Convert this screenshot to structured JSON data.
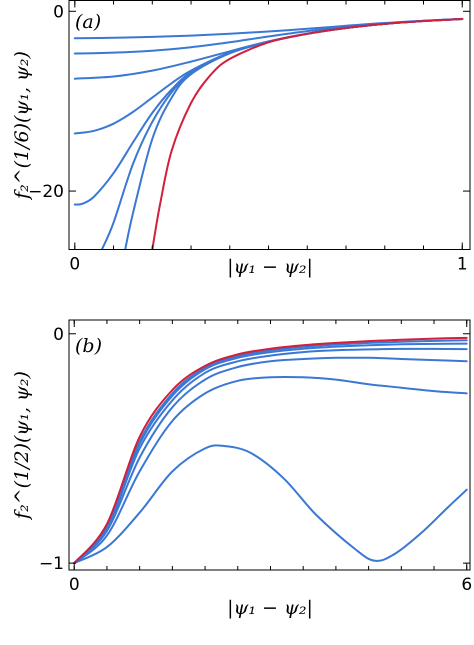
{
  "chart_data": [
    {
      "type": "line",
      "panel_label": "(a)",
      "xlabel": "|ψ₁ − ψ₂|",
      "ylabel": "f₂^(1/6)(ψ₁, ψ₂)",
      "xlim": [
        -0.015,
        1.02
      ],
      "ylim": [
        -26.5,
        1.2
      ],
      "xticks": [
        {
          "v": 0,
          "label": "0"
        },
        {
          "v": 1,
          "label": "1"
        }
      ],
      "yticks": [
        {
          "v": 0,
          "label": "0"
        },
        {
          "v": -20,
          "label": "−20"
        }
      ],
      "grid": false,
      "series": [
        {
          "color": "#3a78d4",
          "values": [
            [
              0,
              -3.0
            ],
            [
              0.1,
              -2.95
            ],
            [
              0.2,
              -2.85
            ],
            [
              0.3,
              -2.7
            ],
            [
              0.4,
              -2.5
            ],
            [
              0.5,
              -2.25
            ],
            [
              0.6,
              -1.95
            ],
            [
              0.7,
              -1.62
            ],
            [
              0.8,
              -1.3
            ],
            [
              0.9,
              -1.05
            ],
            [
              1.0,
              -0.85
            ]
          ]
        },
        {
          "color": "#3a78d4",
          "values": [
            [
              0,
              -4.7
            ],
            [
              0.1,
              -4.6
            ],
            [
              0.2,
              -4.38
            ],
            [
              0.3,
              -4.0
            ],
            [
              0.4,
              -3.45
            ],
            [
              0.5,
              -2.8
            ],
            [
              0.6,
              -2.2
            ],
            [
              0.7,
              -1.72
            ],
            [
              0.8,
              -1.35
            ],
            [
              0.9,
              -1.07
            ],
            [
              1.0,
              -0.85
            ]
          ]
        },
        {
          "color": "#3a78d4",
          "values": [
            [
              0,
              -7.5
            ],
            [
              0.1,
              -7.25
            ],
            [
              0.2,
              -6.6
            ],
            [
              0.3,
              -5.6
            ],
            [
              0.4,
              -4.45
            ],
            [
              0.5,
              -3.35
            ],
            [
              0.6,
              -2.48
            ],
            [
              0.7,
              -1.85
            ],
            [
              0.8,
              -1.4
            ],
            [
              0.9,
              -1.08
            ],
            [
              1.0,
              -0.86
            ]
          ]
        },
        {
          "color": "#3a78d4",
          "values": [
            [
              0,
              -13.6
            ],
            [
              0.05,
              -13.3
            ],
            [
              0.1,
              -12.5
            ],
            [
              0.15,
              -11.2
            ],
            [
              0.2,
              -9.6
            ],
            [
              0.25,
              -8.0
            ],
            [
              0.3,
              -6.6
            ],
            [
              0.4,
              -4.6
            ],
            [
              0.5,
              -3.4
            ],
            [
              0.6,
              -2.5
            ],
            [
              0.7,
              -1.86
            ],
            [
              0.8,
              -1.4
            ],
            [
              0.9,
              -1.08
            ],
            [
              1.0,
              -0.86
            ]
          ]
        },
        {
          "color": "#3a78d4",
          "values": [
            [
              0,
              -21.5
            ],
            [
              0.02,
              -21.4
            ],
            [
              0.05,
              -20.6
            ],
            [
              0.1,
              -18.0
            ],
            [
              0.15,
              -14.6
            ],
            [
              0.2,
              -11.3
            ],
            [
              0.25,
              -8.7
            ],
            [
              0.3,
              -6.8
            ],
            [
              0.4,
              -4.65
            ],
            [
              0.5,
              -3.4
            ],
            [
              0.6,
              -2.5
            ],
            [
              0.7,
              -1.86
            ],
            [
              0.8,
              -1.4
            ],
            [
              0.9,
              -1.08
            ],
            [
              1.0,
              -0.86
            ]
          ]
        },
        {
          "color": "#3a78d4",
          "values": [
            [
              0.07,
              -26.5
            ],
            [
              0.1,
              -23.5
            ],
            [
              0.15,
              -17.0
            ],
            [
              0.2,
              -12.3
            ],
            [
              0.25,
              -9.0
            ],
            [
              0.3,
              -6.9
            ],
            [
              0.4,
              -4.65
            ],
            [
              0.5,
              -3.4
            ],
            [
              0.6,
              -2.5
            ],
            [
              0.7,
              -1.86
            ],
            [
              0.8,
              -1.4
            ],
            [
              0.9,
              -1.08
            ],
            [
              1.0,
              -0.86
            ]
          ]
        },
        {
          "color": "#3a78d4",
          "values": [
            [
              0.13,
              -26.5
            ],
            [
              0.15,
              -22.5
            ],
            [
              0.2,
              -14.2
            ],
            [
              0.25,
              -9.6
            ],
            [
              0.3,
              -7.0
            ],
            [
              0.4,
              -4.66
            ],
            [
              0.5,
              -3.4
            ],
            [
              0.6,
              -2.5
            ],
            [
              0.7,
              -1.86
            ],
            [
              0.8,
              -1.4
            ],
            [
              0.9,
              -1.08
            ],
            [
              1.0,
              -0.86
            ]
          ]
        },
        {
          "color": "#d21f3c",
          "values": [
            [
              0.2,
              -26.5
            ],
            [
              0.22,
              -21.5
            ],
            [
              0.25,
              -15.5
            ],
            [
              0.3,
              -10.2
            ],
            [
              0.35,
              -7.1
            ],
            [
              0.4,
              -5.3
            ],
            [
              0.5,
              -3.45
            ],
            [
              0.6,
              -2.5
            ],
            [
              0.7,
              -1.86
            ],
            [
              0.8,
              -1.4
            ],
            [
              0.9,
              -1.08
            ],
            [
              1.0,
              -0.86
            ]
          ]
        }
      ]
    },
    {
      "type": "line",
      "panel_label": "(b)",
      "xlabel": "|ψ₁ − ψ₂|",
      "ylabel": "f₂^(1/2)(ψ₁, ψ₂)",
      "xlim": [
        -0.08,
        6.05
      ],
      "ylim": [
        -1.03,
        0.06
      ],
      "xticks": [
        {
          "v": 0,
          "label": "0"
        },
        {
          "v": 6,
          "label": "6"
        }
      ],
      "yticks": [
        {
          "v": 0,
          "label": "0"
        },
        {
          "v": -1,
          "label": "−1"
        }
      ],
      "grid": false,
      "series": [
        {
          "color": "#3a78d4",
          "values": [
            [
              0,
              -1.0
            ],
            [
              0.5,
              -0.93
            ],
            [
              1.0,
              -0.78
            ],
            [
              1.5,
              -0.6
            ],
            [
              2.0,
              -0.5
            ],
            [
              2.3,
              -0.49
            ],
            [
              2.7,
              -0.52
            ],
            [
              3.2,
              -0.63
            ],
            [
              3.7,
              -0.79
            ],
            [
              4.3,
              -0.94
            ],
            [
              4.6,
              -0.99
            ],
            [
              4.9,
              -0.96
            ],
            [
              5.3,
              -0.87
            ],
            [
              5.7,
              -0.76
            ],
            [
              6.0,
              -0.68
            ]
          ]
        },
        {
          "color": "#3a78d4",
          "values": [
            [
              0,
              -1.0
            ],
            [
              0.5,
              -0.88
            ],
            [
              1.0,
              -0.6
            ],
            [
              1.5,
              -0.38
            ],
            [
              2.0,
              -0.26
            ],
            [
              2.5,
              -0.205
            ],
            [
              3.0,
              -0.19
            ],
            [
              3.5,
              -0.19
            ],
            [
              4.0,
              -0.2
            ],
            [
              4.5,
              -0.22
            ],
            [
              5.0,
              -0.235
            ],
            [
              5.5,
              -0.25
            ],
            [
              6.0,
              -0.26
            ]
          ]
        },
        {
          "color": "#3a78d4",
          "values": [
            [
              0,
              -1.0
            ],
            [
              0.5,
              -0.86
            ],
            [
              1.0,
              -0.54
            ],
            [
              1.5,
              -0.32
            ],
            [
              2.0,
              -0.2
            ],
            [
              2.5,
              -0.145
            ],
            [
              3.0,
              -0.12
            ],
            [
              3.5,
              -0.11
            ],
            [
              4.0,
              -0.105
            ],
            [
              4.5,
              -0.105
            ],
            [
              5.0,
              -0.11
            ],
            [
              5.5,
              -0.115
            ],
            [
              6.0,
              -0.12
            ]
          ]
        },
        {
          "color": "#3a78d4",
          "values": [
            [
              0,
              -1.0
            ],
            [
              0.5,
              -0.85
            ],
            [
              1.0,
              -0.5
            ],
            [
              1.5,
              -0.29
            ],
            [
              2.0,
              -0.17
            ],
            [
              2.5,
              -0.12
            ],
            [
              3.0,
              -0.095
            ],
            [
              3.5,
              -0.08
            ],
            [
              4.0,
              -0.072
            ],
            [
              4.5,
              -0.068
            ],
            [
              5.0,
              -0.066
            ],
            [
              5.5,
              -0.066
            ],
            [
              6.0,
              -0.067
            ]
          ]
        },
        {
          "color": "#3a78d4",
          "values": [
            [
              0,
              -1.0
            ],
            [
              0.5,
              -0.84
            ],
            [
              1.0,
              -0.48
            ],
            [
              1.5,
              -0.27
            ],
            [
              2.0,
              -0.155
            ],
            [
              2.5,
              -0.105
            ],
            [
              3.0,
              -0.08
            ],
            [
              3.5,
              -0.065
            ],
            [
              4.0,
              -0.056
            ],
            [
              4.5,
              -0.05
            ],
            [
              5.0,
              -0.046
            ],
            [
              5.5,
              -0.044
            ],
            [
              6.0,
              -0.043
            ]
          ]
        },
        {
          "color": "#3a78d4",
          "values": [
            [
              0,
              -1.0
            ],
            [
              0.5,
              -0.84
            ],
            [
              1.0,
              -0.47
            ],
            [
              1.5,
              -0.26
            ],
            [
              2.0,
              -0.148
            ],
            [
              2.5,
              -0.098
            ],
            [
              3.0,
              -0.072
            ],
            [
              3.5,
              -0.057
            ],
            [
              4.0,
              -0.047
            ],
            [
              4.5,
              -0.04
            ],
            [
              5.0,
              -0.035
            ],
            [
              5.5,
              -0.031
            ],
            [
              6.0,
              -0.028
            ]
          ]
        },
        {
          "color": "#d21f3c",
          "values": [
            [
              0,
              -1.0
            ],
            [
              0.5,
              -0.83
            ],
            [
              1.0,
              -0.45
            ],
            [
              1.5,
              -0.245
            ],
            [
              2.0,
              -0.14
            ],
            [
              2.5,
              -0.09
            ],
            [
              3.0,
              -0.065
            ],
            [
              3.5,
              -0.05
            ],
            [
              4.0,
              -0.04
            ],
            [
              4.5,
              -0.032
            ],
            [
              5.0,
              -0.026
            ],
            [
              5.5,
              -0.021
            ],
            [
              6.0,
              -0.018
            ]
          ]
        }
      ]
    }
  ]
}
